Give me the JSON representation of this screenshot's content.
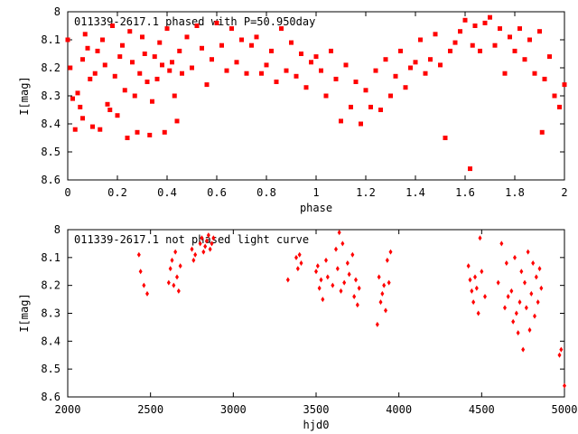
{
  "chart_data": [
    {
      "type": "scatter",
      "title": "011339-2617.1 phased with P=50.950day",
      "xlabel": "phase",
      "ylabel": "I[mag]",
      "xlim": [
        0,
        2
      ],
      "ylim": [
        8.6,
        8.0
      ],
      "y_inverted": true,
      "grid": false,
      "marker_color": "#ff0000",
      "marker_shape": "filled-square",
      "x_ticks": [
        0,
        0.2,
        0.4,
        0.6,
        0.8,
        1.0,
        1.2,
        1.4,
        1.6,
        1.8,
        2.0
      ],
      "x_tick_labels": [
        "0",
        "0.2",
        "0.4",
        "0.6",
        "0.8",
        "1",
        "1.2",
        "1.4",
        "1.6",
        "1.8",
        "2"
      ],
      "y_ticks": [
        8.0,
        8.1,
        8.2,
        8.3,
        8.4,
        8.5,
        8.6
      ],
      "y_tick_labels": [
        "8",
        "8.1",
        "8.2",
        "8.3",
        "8.4",
        "8.5",
        "8.6"
      ],
      "series": [
        {
          "x": [
            0.0,
            0.01,
            0.02,
            0.03,
            0.04,
            0.05,
            0.06,
            0.06,
            0.07,
            0.08,
            0.09,
            0.1,
            0.11,
            0.12,
            0.13,
            0.14,
            0.15,
            0.16,
            0.17,
            0.18,
            0.19,
            0.2,
            0.21,
            0.22,
            0.23,
            0.24,
            0.25,
            0.26,
            0.27,
            0.28,
            0.29,
            0.3,
            0.31,
            0.32,
            0.33,
            0.34,
            0.35,
            0.36,
            0.37,
            0.38,
            0.39,
            0.4,
            0.41,
            0.42,
            0.43,
            0.44,
            0.45,
            0.46,
            0.48,
            0.5,
            0.52,
            0.54,
            0.56,
            0.58,
            0.6,
            0.62,
            0.64,
            0.66,
            0.68,
            0.7,
            0.72,
            0.74,
            0.76,
            0.78,
            0.8,
            0.82,
            0.84,
            0.86,
            0.88,
            0.9,
            0.92,
            0.94,
            0.96,
            0.98,
            1.0,
            1.02,
            1.04,
            1.06,
            1.08,
            1.1,
            1.12,
            1.14,
            1.16,
            1.18,
            1.2,
            1.22,
            1.24,
            1.26,
            1.28,
            1.3,
            1.32,
            1.34,
            1.36,
            1.38,
            1.4,
            1.42,
            1.44,
            1.46,
            1.48,
            1.5,
            1.52,
            1.54,
            1.56,
            1.58,
            1.6,
            1.62,
            1.63,
            1.64,
            1.66,
            1.68,
            1.7,
            1.72,
            1.74,
            1.76,
            1.78,
            1.8,
            1.82,
            1.84,
            1.86,
            1.88,
            1.9,
            1.91,
            1.92,
            1.94,
            1.96,
            1.98,
            2.0
          ],
          "y": [
            8.1,
            8.2,
            8.31,
            8.42,
            8.29,
            8.34,
            8.17,
            8.38,
            8.08,
            8.13,
            8.24,
            8.41,
            8.22,
            8.14,
            8.42,
            8.1,
            8.19,
            8.33,
            8.35,
            8.05,
            8.23,
            8.37,
            8.16,
            8.12,
            8.28,
            8.45,
            8.07,
            8.18,
            8.3,
            8.43,
            8.22,
            8.09,
            8.15,
            8.25,
            8.44,
            8.32,
            8.16,
            8.24,
            8.11,
            8.19,
            8.43,
            8.06,
            8.21,
            8.18,
            8.3,
            8.39,
            8.14,
            8.22,
            8.09,
            8.2,
            8.05,
            8.13,
            8.26,
            8.17,
            8.04,
            8.12,
            8.21,
            8.06,
            8.18,
            8.1,
            8.22,
            8.12,
            8.09,
            8.22,
            8.19,
            8.14,
            8.25,
            8.06,
            8.21,
            8.11,
            8.23,
            8.15,
            8.27,
            8.18,
            8.16,
            8.21,
            8.3,
            8.14,
            8.24,
            8.39,
            8.19,
            8.34,
            8.25,
            8.4,
            8.28,
            8.34,
            8.21,
            8.35,
            8.17,
            8.3,
            8.23,
            8.14,
            8.27,
            8.2,
            8.18,
            8.1,
            8.22,
            8.17,
            8.08,
            8.19,
            8.45,
            8.14,
            8.11,
            8.07,
            8.03,
            8.56,
            8.12,
            8.05,
            8.14,
            8.04,
            8.02,
            8.12,
            8.06,
            8.22,
            8.09,
            8.14,
            8.06,
            8.17,
            8.1,
            8.22,
            8.07,
            8.43,
            8.24,
            8.16,
            8.3,
            8.34,
            8.26
          ]
        }
      ]
    },
    {
      "type": "scatter",
      "title": "011339-2617.1 not phased light curve",
      "xlabel": "hjd0",
      "ylabel": "I[mag]",
      "xlim": [
        2000,
        5000
      ],
      "ylim": [
        8.6,
        8.0
      ],
      "y_inverted": true,
      "grid": false,
      "marker_color": "#ff0000",
      "marker_shape": "filled-diamond",
      "x_ticks": [
        2000,
        2500,
        3000,
        3500,
        4000,
        4500,
        5000
      ],
      "x_tick_labels": [
        "2000",
        "2500",
        "3000",
        "3500",
        "4000",
        "4500",
        "5000"
      ],
      "y_ticks": [
        8.0,
        8.1,
        8.2,
        8.3,
        8.4,
        8.5,
        8.6
      ],
      "y_tick_labels": [
        "8",
        "8.1",
        "8.2",
        "8.3",
        "8.4",
        "8.5",
        "8.6"
      ],
      "series": [
        {
          "x": [
            2430,
            2440,
            2460,
            2480,
            2610,
            2620,
            2630,
            2640,
            2650,
            2660,
            2670,
            2680,
            2750,
            2760,
            2770,
            2800,
            2810,
            2820,
            2830,
            2840,
            2850,
            2860,
            2870,
            2880,
            3330,
            3380,
            3390,
            3400,
            3410,
            3500,
            3510,
            3520,
            3530,
            3540,
            3560,
            3570,
            3600,
            3620,
            3630,
            3640,
            3650,
            3660,
            3670,
            3690,
            3700,
            3720,
            3730,
            3740,
            3750,
            3760,
            3870,
            3880,
            3890,
            3900,
            3910,
            3920,
            3930,
            3940,
            3950,
            4420,
            4430,
            4440,
            4450,
            4460,
            4470,
            4480,
            4490,
            4500,
            4520,
            4600,
            4620,
            4640,
            4650,
            4660,
            4680,
            4690,
            4700,
            4710,
            4720,
            4730,
            4740,
            4750,
            4760,
            4770,
            4780,
            4790,
            4800,
            4810,
            4820,
            4830,
            4840,
            4850,
            4860,
            4970,
            4980,
            5000
          ],
          "y": [
            8.09,
            8.15,
            8.2,
            8.23,
            8.19,
            8.14,
            8.11,
            8.2,
            8.08,
            8.17,
            8.22,
            8.13,
            8.07,
            8.11,
            8.09,
            8.05,
            8.03,
            8.08,
            8.06,
            8.04,
            8.02,
            8.07,
            8.05,
            8.03,
            8.18,
            8.1,
            8.14,
            8.09,
            8.12,
            8.15,
            8.13,
            8.21,
            8.18,
            8.25,
            8.11,
            8.17,
            8.2,
            8.07,
            8.14,
            8.01,
            8.22,
            8.05,
            8.19,
            8.12,
            8.16,
            8.09,
            8.24,
            8.18,
            8.27,
            8.21,
            8.34,
            8.17,
            8.26,
            8.23,
            8.2,
            8.29,
            8.11,
            8.19,
            8.08,
            8.13,
            8.18,
            8.22,
            8.26,
            8.17,
            8.21,
            8.3,
            8.03,
            8.15,
            8.24,
            8.19,
            8.05,
            8.28,
            8.12,
            8.24,
            8.22,
            8.33,
            8.1,
            8.3,
            8.37,
            8.26,
            8.15,
            8.43,
            8.19,
            8.28,
            8.08,
            8.36,
            8.23,
            8.12,
            8.31,
            8.17,
            8.26,
            8.14,
            8.21,
            8.45,
            8.43,
            8.56
          ]
        }
      ]
    }
  ]
}
